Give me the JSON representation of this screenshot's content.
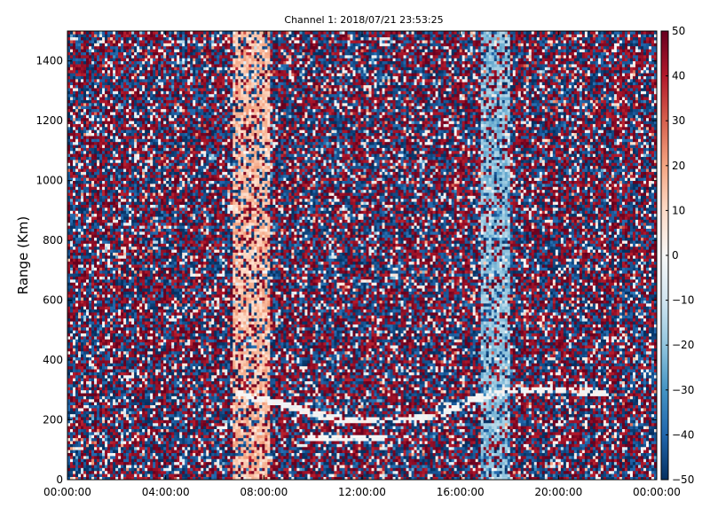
{
  "chart_data": {
    "type": "heatmap",
    "title": "Channel 1: 2018/07/21 23:53:25",
    "xlabel": "",
    "ylabel": "Range (Km)",
    "x_ticks": [
      "00:00:00",
      "04:00:00",
      "08:00:00",
      "12:00:00",
      "16:00:00",
      "20:00:00",
      "00:00:00"
    ],
    "x_range_hours": [
      0,
      24
    ],
    "y_ticks": [
      0,
      200,
      400,
      600,
      800,
      1000,
      1200,
      1400
    ],
    "y_range": [
      0,
      1500
    ],
    "colorbar": {
      "ticks": [
        -50,
        -40,
        -30,
        -20,
        -10,
        0,
        10,
        20,
        30,
        40,
        50
      ],
      "range": [
        -50,
        50
      ],
      "colormap": "RdBu_r",
      "low_color": "#053061",
      "mid_color": "#f7f7f7",
      "high_color": "#67001f"
    },
    "features": {
      "positive_band_hours": [
        6.7,
        8.2
      ],
      "positive_band_value": 15,
      "negative_band_hours": [
        16.8,
        18.0
      ],
      "negative_band_value": -20,
      "near_zero_arc": [
        {
          "hour": 6.8,
          "range": 290
        },
        {
          "hour": 8.5,
          "range": 260
        },
        {
          "hour": 10.0,
          "range": 220
        },
        {
          "hour": 11.5,
          "range": 200
        },
        {
          "hour": 13.5,
          "range": 200
        },
        {
          "hour": 15.0,
          "range": 210
        },
        {
          "hour": 16.5,
          "range": 270
        },
        {
          "hour": 18.0,
          "range": 300
        },
        {
          "hour": 20.0,
          "range": 300
        },
        {
          "hour": 22.0,
          "range": 290
        }
      ],
      "near_zero_segment": {
        "hours": [
          9.8,
          13.0
        ],
        "range": 140
      }
    },
    "grid": false,
    "legend": "none"
  }
}
